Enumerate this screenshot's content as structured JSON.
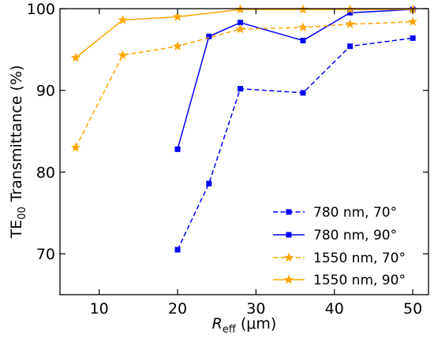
{
  "chart_data": {
    "type": "line",
    "xlabel_main": "R",
    "xlabel_sub": "eff",
    "xlabel_unit": " (μm)",
    "ylabel_main": "TE",
    "ylabel_sub": "00",
    "ylabel_rest": " Transmittance (%)",
    "xlim": [
      5,
      52
    ],
    "ylim": [
      65,
      100
    ],
    "xticks": [
      10,
      20,
      30,
      40,
      50
    ],
    "yticks": [
      70,
      80,
      90,
      100
    ],
    "xtick_labels": [
      "10",
      "20",
      "30",
      "40",
      "50"
    ],
    "ytick_labels": [
      "70",
      "80",
      "90",
      "100"
    ],
    "legend_position": "lower-right",
    "grid": false,
    "series": [
      {
        "name": "780 nm, 70°",
        "color": "#0000ff",
        "line_style": "dashed",
        "marker": "square",
        "x": [
          20,
          24,
          28,
          36,
          42,
          50
        ],
        "y": [
          70.5,
          78.6,
          90.2,
          89.7,
          95.4,
          96.4
        ]
      },
      {
        "name": "780 nm, 90°",
        "color": "#0000ff",
        "line_style": "solid",
        "marker": "square",
        "x": [
          20,
          24,
          28,
          36,
          42,
          50
        ],
        "y": [
          82.8,
          96.6,
          98.3,
          96.1,
          99.5,
          99.9
        ]
      },
      {
        "name": "1550 nm, 70°",
        "color": "#ffa500",
        "line_style": "dashed",
        "marker": "star",
        "x": [
          7,
          13,
          20,
          28,
          36,
          42,
          50
        ],
        "y": [
          83.0,
          94.3,
          95.4,
          97.5,
          97.7,
          98.1,
          98.4
        ]
      },
      {
        "name": "1550 nm, 90°",
        "color": "#ffa500",
        "line_style": "solid",
        "marker": "star",
        "x": [
          7,
          13,
          20,
          28,
          36,
          42,
          50
        ],
        "y": [
          94.0,
          98.6,
          99.0,
          99.9,
          99.9,
          99.9,
          99.9
        ]
      }
    ]
  }
}
